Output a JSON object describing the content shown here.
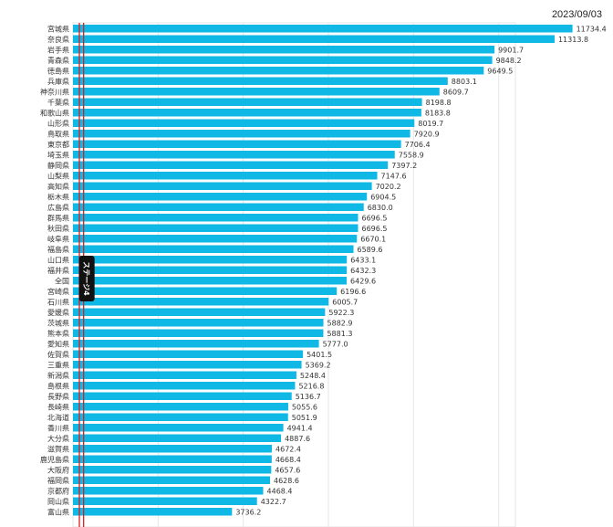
{
  "header": {
    "date": "2023/09/03"
  },
  "colors": {
    "bar": "#10b8e6",
    "marker": "#e21c1c",
    "grid": "#e6e6e6",
    "stage_bg": "#111111"
  },
  "stage_label": "ステージ4",
  "chart_data": {
    "type": "bar",
    "orientation": "horizontal",
    "title": "",
    "xlabel": "",
    "ylabel": "",
    "xlim": [
      0,
      12000
    ],
    "grid": true,
    "categories": [
      "宮城県",
      "奈良県",
      "岩手県",
      "青森県",
      "徳島県",
      "兵庫県",
      "神奈川県",
      "千葉県",
      "和歌山県",
      "山形県",
      "鳥取県",
      "東京都",
      "埼玉県",
      "静岡県",
      "山梨県",
      "高知県",
      "栃木県",
      "広島県",
      "群馬県",
      "秋田県",
      "岐阜県",
      "福島県",
      "山口県",
      "福井県",
      "全国",
      "宮崎県",
      "石川県",
      "愛媛県",
      "茨城県",
      "熊本県",
      "愛知県",
      "佐賀県",
      "三重県",
      "新潟県",
      "島根県",
      "長野県",
      "長崎県",
      "北海道",
      "香川県",
      "大分県",
      "滋賀県",
      "鹿児島県",
      "大阪府",
      "福岡県",
      "京都府",
      "岡山県",
      "富山県"
    ],
    "values": [
      11734.4,
      11313.8,
      9901.7,
      9848.2,
      9649.5,
      8803.1,
      8609.7,
      8198.8,
      8183.8,
      8019.7,
      7920.9,
      7706.4,
      7558.9,
      7397.2,
      7147.6,
      7020.2,
      6904.5,
      6830.0,
      6696.5,
      6696.5,
      6670.1,
      6589.6,
      6433.1,
      6432.3,
      6429.6,
      6196.6,
      6005.7,
      5922.3,
      5882.9,
      5881.3,
      5777.0,
      5401.5,
      5369.2,
      5248.4,
      5216.8,
      5136.7,
      5055.6,
      5051.9,
      4941.4,
      4887.6,
      4672.4,
      4668.4,
      4657.6,
      4628.6,
      4468.4,
      4322.7,
      3736.2
    ],
    "value_labels": [
      "11734.4",
      "11313.8",
      "9901.7",
      "9848.2",
      "9649.5",
      "8803.1",
      "8609.7",
      "8198.8",
      "8183.8",
      "8019.7",
      "7920.9",
      "7706.4",
      "7558.9",
      "7397.2",
      "7147.6",
      "7020.2",
      "6904.5",
      "6830.0",
      "6696.5",
      "6696.5",
      "6670.1",
      "6589.6",
      "6433.1",
      "6432.3",
      "6429.6",
      "6196.6",
      "6005.7",
      "5922.3",
      "5882.9",
      "5881.3",
      "5777.0",
      "5401.5",
      "5369.2",
      "5248.4",
      "5216.8",
      "5136.7",
      "5055.6",
      "5051.9",
      "4941.4",
      "4887.6",
      "4672.4",
      "4668.4",
      "4657.6",
      "4628.6",
      "4468.4",
      "4322.7",
      "3736.2"
    ],
    "threshold_lines": [
      150,
      250
    ]
  }
}
